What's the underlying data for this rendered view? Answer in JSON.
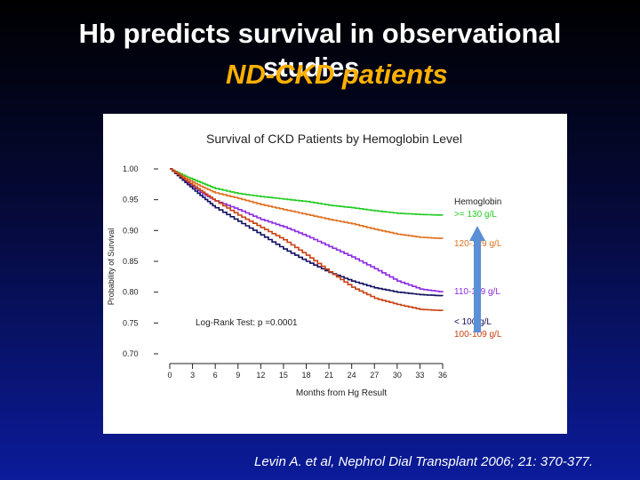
{
  "slide": {
    "title_line1": "Hb predicts survival in observational",
    "title_line2": "studies",
    "subtitle": "ND-CKD patients",
    "citation": "Levin A. et al, Nephrol Dial Transplant 2006; 21: 370-377."
  },
  "chart_data": {
    "type": "line",
    "title": "Survival of CKD Patients by Hemoglobin Level",
    "xlabel": "Months from Hg Result",
    "ylabel": "Probability of Survival",
    "xlim": [
      0,
      36
    ],
    "ylim": [
      0.7,
      1.0
    ],
    "x_ticks": [
      "0",
      "3",
      "6",
      "9",
      "12",
      "15",
      "18",
      "21",
      "24",
      "27",
      "30",
      "33",
      "36"
    ],
    "y_ticks": [
      "1.00",
      "0.95",
      "0.90",
      "0.85",
      "0.80",
      "0.75",
      "0.70"
    ],
    "legend_title": "Hemoglobin",
    "annotation": "Log-Rank Test: p =0.0001",
    "series": [
      {
        "name": ">= 130 g/L",
        "color": "#22cc22",
        "x": [
          0,
          2,
          4,
          6,
          9,
          12,
          15,
          18,
          21,
          24,
          27,
          30,
          33,
          36
        ],
        "y": [
          1.0,
          0.988,
          0.978,
          0.968,
          0.96,
          0.955,
          0.951,
          0.947,
          0.941,
          0.937,
          0.932,
          0.928,
          0.926,
          0.925
        ]
      },
      {
        "name": "120-129 g/L",
        "color": "#e07020",
        "x": [
          0,
          2,
          4,
          6,
          9,
          12,
          15,
          18,
          21,
          24,
          27,
          30,
          33,
          36
        ],
        "y": [
          1.0,
          0.985,
          0.972,
          0.961,
          0.952,
          0.942,
          0.934,
          0.926,
          0.918,
          0.911,
          0.902,
          0.894,
          0.889,
          0.887
        ]
      },
      {
        "name": "110-119 g/L",
        "color": "#8a2be2",
        "x": [
          0,
          2,
          4,
          6,
          9,
          12,
          15,
          18,
          21,
          24,
          27,
          30,
          33,
          36
        ],
        "y": [
          1.0,
          0.98,
          0.962,
          0.948,
          0.934,
          0.918,
          0.906,
          0.891,
          0.874,
          0.857,
          0.838,
          0.818,
          0.805,
          0.8
        ]
      },
      {
        "name": "< 100 g/L",
        "color": "#101060",
        "x": [
          0,
          2,
          4,
          6,
          9,
          12,
          15,
          18,
          21,
          24,
          27,
          30,
          33,
          36
        ],
        "y": [
          1.0,
          0.978,
          0.957,
          0.937,
          0.915,
          0.893,
          0.87,
          0.85,
          0.832,
          0.818,
          0.807,
          0.8,
          0.796,
          0.794
        ]
      },
      {
        "name": "100-109 g/L",
        "color": "#c84010",
        "x": [
          0,
          2,
          4,
          6,
          9,
          12,
          15,
          18,
          21,
          24,
          27,
          30,
          33,
          36
        ],
        "y": [
          1.0,
          0.982,
          0.965,
          0.948,
          0.925,
          0.905,
          0.885,
          0.86,
          0.833,
          0.808,
          0.79,
          0.78,
          0.772,
          0.77
        ]
      }
    ],
    "overlay_arrow": {
      "color": "#5b8fd6"
    }
  }
}
